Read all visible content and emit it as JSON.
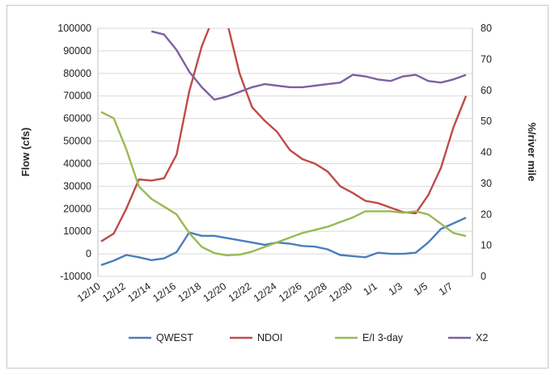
{
  "chart_data": {
    "type": "line",
    "xlabel": "",
    "ylabel": "Flow (cfs)",
    "y2label": "%/river mile",
    "ylim": [
      -10000,
      100000
    ],
    "y2lim": [
      0,
      80
    ],
    "yticks": [
      "100000",
      "90000",
      "80000",
      "70000",
      "60000",
      "50000",
      "40000",
      "30000",
      "20000",
      "10000",
      "0",
      "-10000"
    ],
    "y2ticks": [
      "80",
      "70",
      "60",
      "50",
      "40",
      "30",
      "20",
      "10",
      "0"
    ],
    "x": [
      "12/10",
      "12/11",
      "12/12",
      "12/13",
      "12/14",
      "12/15",
      "12/16",
      "12/17",
      "12/18",
      "12/19",
      "12/20",
      "12/21",
      "12/22",
      "12/23",
      "12/24",
      "12/25",
      "12/26",
      "12/27",
      "12/28",
      "12/29",
      "12/30",
      "12/31",
      "1/1",
      "1/2",
      "1/3",
      "1/4",
      "1/5",
      "1/6",
      "1/7",
      "1/8"
    ],
    "xtick_labels": [
      "12/10",
      "12/12",
      "12/14",
      "12/16",
      "12/18",
      "12/20",
      "12/22",
      "12/24",
      "12/26",
      "12/28",
      "12/30",
      "1/1",
      "1/3",
      "1/5",
      "1/7"
    ],
    "grid": true,
    "legend_position": "bottom",
    "series": [
      {
        "name": "QWEST",
        "axis": "left",
        "color": "#4a7ebb",
        "values": [
          -5000,
          -3000,
          -500,
          -1500,
          -2800,
          -2000,
          800,
          9500,
          8000,
          8000,
          7000,
          6000,
          5000,
          4000,
          5000,
          4500,
          3500,
          3200,
          2000,
          -500,
          -1000,
          -1500,
          500,
          0,
          0,
          500,
          5000,
          11000,
          13500,
          16000
        ]
      },
      {
        "name": "NDOI",
        "axis": "left",
        "color": "#be4b48",
        "values": [
          5500,
          9000,
          20000,
          33000,
          32500,
          33500,
          44000,
          72000,
          92000,
          106000,
          103000,
          80000,
          65000,
          59000,
          54000,
          46000,
          42000,
          40000,
          36500,
          30000,
          27000,
          23500,
          22500,
          20500,
          18500,
          18000,
          26000,
          38000,
          56000,
          70000
        ]
      },
      {
        "name": "E/I 3-day",
        "axis": "right",
        "color": "#98b954",
        "values": [
          53,
          51,
          41,
          29,
          25,
          22.5,
          20,
          14,
          9.5,
          7.5,
          6.8,
          7,
          8,
          9.5,
          11,
          12.5,
          14,
          15,
          16,
          17.5,
          19,
          21,
          21,
          21,
          20.5,
          21,
          20,
          17,
          14,
          13
        ]
      },
      {
        "name": "X2",
        "axis": "right",
        "color": "#7d60a0",
        "values": [
          null,
          null,
          null,
          null,
          79,
          78,
          73,
          66,
          61,
          57,
          58,
          59.5,
          61,
          62,
          61.5,
          61,
          61,
          61.5,
          62,
          62.5,
          65,
          64.5,
          63.5,
          63,
          64.5,
          65,
          63,
          62.5,
          63.5,
          65
        ]
      }
    ]
  }
}
